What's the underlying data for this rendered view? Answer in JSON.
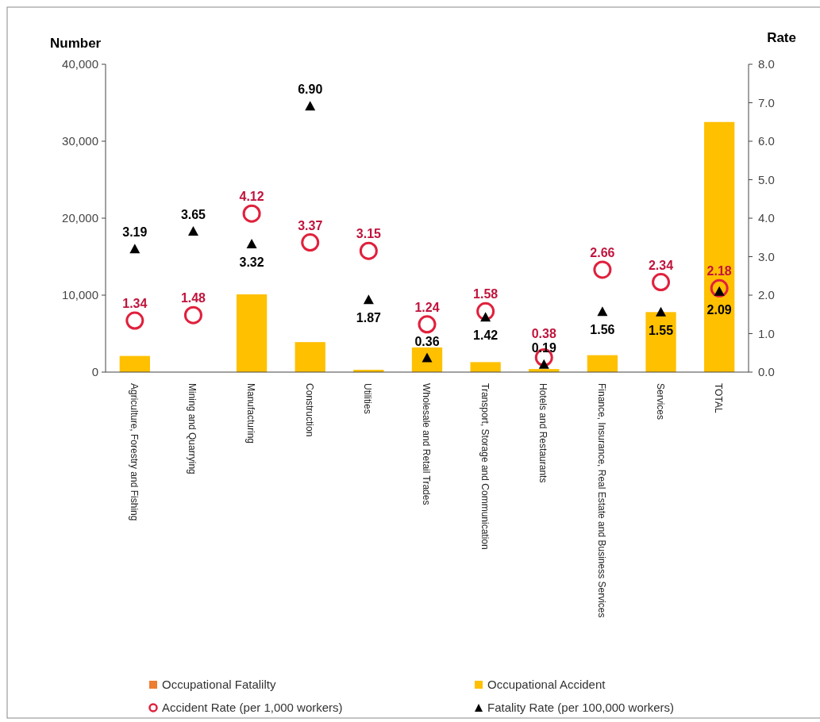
{
  "chart_data": {
    "type": "bar",
    "ylabel": "Number",
    "y2label": "Rate",
    "categories": [
      "Agriculture, Forestry and Fishing",
      "Mining and Quarrying",
      "Manufacturing",
      "Construction",
      "Utilities",
      "Wholesale and Retail Trades",
      "Transport, Storage and Communication",
      "Hotels and Restaurants",
      "Finance, Insurance, Real Estate and Business Services",
      "Services",
      "TOTAL"
    ],
    "series": [
      {
        "name": "Occupational Fatalilty",
        "color": "#ed7d31",
        "values": [
          null,
          null,
          null,
          null,
          null,
          null,
          null,
          null,
          null,
          null,
          null
        ]
      },
      {
        "name": "Occupational Accident",
        "color": "#ffc000",
        "values": [
          2100,
          0,
          10100,
          3900,
          300,
          3200,
          1300,
          400,
          2200,
          7800,
          32500
        ]
      },
      {
        "name": "Accident Rate (per 1,000 workers)",
        "type": "scatter",
        "axis": "y2",
        "marker": "circle",
        "color": "#e0203c",
        "values": [
          1.34,
          1.48,
          4.12,
          3.37,
          3.15,
          1.24,
          1.58,
          0.38,
          2.66,
          2.34,
          2.18
        ],
        "value_labels": [
          "1.34",
          "1.48",
          "4.12",
          "3.37",
          "3.15",
          "1.24",
          "1.58",
          "0.38",
          "2.66",
          "2.34",
          "2.18"
        ]
      },
      {
        "name": "Fatality Rate (per 100,000 workers)",
        "type": "scatter",
        "axis": "y2",
        "marker": "triangle",
        "color": "#000000",
        "values": [
          3.19,
          3.65,
          3.32,
          6.9,
          1.87,
          0.36,
          1.42,
          0.19,
          1.56,
          1.55,
          2.09
        ],
        "value_labels": [
          "3.19",
          "3.65",
          "3.32",
          "6.90",
          "1.87",
          "0.36",
          "1.42",
          "0.19",
          "1.56",
          "1.55",
          "2.09"
        ]
      }
    ],
    "ylim": [
      0,
      40000
    ],
    "yticks": [
      {
        "value": 0,
        "label": "0"
      },
      {
        "value": 10000,
        "label": "10,000"
      },
      {
        "value": 20000,
        "label": "20,000"
      },
      {
        "value": 30000,
        "label": "30,000"
      },
      {
        "value": 40000,
        "label": "40,000"
      }
    ],
    "y2lim": [
      0,
      8
    ],
    "y2ticks": [
      {
        "value": 0,
        "label": "0.0"
      },
      {
        "value": 1,
        "label": "1.0"
      },
      {
        "value": 2,
        "label": "2.0"
      },
      {
        "value": 3,
        "label": "3.0"
      },
      {
        "value": 4,
        "label": "4.0"
      },
      {
        "value": 5,
        "label": "5.0"
      },
      {
        "value": 6,
        "label": "6.0"
      },
      {
        "value": 7,
        "label": "7.0"
      },
      {
        "value": 8,
        "label": "8.0"
      }
    ],
    "legend": "bottom",
    "grid": false
  }
}
